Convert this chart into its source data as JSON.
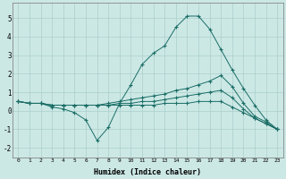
{
  "xlabel": "Humidex (Indice chaleur)",
  "xlim": [
    -0.5,
    23.5
  ],
  "ylim": [
    -2.5,
    5.8
  ],
  "xticks": [
    0,
    1,
    2,
    3,
    4,
    5,
    6,
    7,
    8,
    9,
    10,
    11,
    12,
    13,
    14,
    15,
    16,
    17,
    18,
    19,
    20,
    21,
    22,
    23
  ],
  "yticks": [
    -2,
    -1,
    0,
    1,
    2,
    3,
    4,
    5
  ],
  "bg_color": "#cce8e5",
  "line_color": "#1a6e66",
  "grid_color": "#aacfcc",
  "line1_x": [
    0,
    1,
    2,
    3,
    4,
    5,
    6,
    7,
    8,
    9,
    10,
    11,
    12,
    13,
    14,
    15,
    16,
    17,
    18,
    19,
    20,
    21,
    22,
    23
  ],
  "line1_y": [
    0.5,
    0.4,
    0.4,
    0.2,
    0.1,
    -0.1,
    -0.5,
    -1.6,
    -0.9,
    0.4,
    1.4,
    2.5,
    3.1,
    3.5,
    4.5,
    5.1,
    5.1,
    4.4,
    3.3,
    2.2,
    1.2,
    0.3,
    -0.5,
    -1.0
  ],
  "line2_x": [
    0,
    1,
    2,
    3,
    4,
    5,
    6,
    7,
    8,
    9,
    10,
    11,
    12,
    13,
    14,
    15,
    16,
    17,
    18,
    19,
    20,
    21,
    22,
    23
  ],
  "line2_y": [
    0.5,
    0.4,
    0.4,
    0.3,
    0.3,
    0.3,
    0.3,
    0.3,
    0.4,
    0.5,
    0.6,
    0.7,
    0.8,
    0.9,
    1.1,
    1.2,
    1.4,
    1.6,
    1.9,
    1.3,
    0.4,
    -0.3,
    -0.6,
    -1.0
  ],
  "line3_x": [
    0,
    1,
    2,
    3,
    4,
    5,
    6,
    7,
    8,
    9,
    10,
    11,
    12,
    13,
    14,
    15,
    16,
    17,
    18,
    19,
    20,
    21,
    22,
    23
  ],
  "line3_y": [
    0.5,
    0.4,
    0.4,
    0.3,
    0.3,
    0.3,
    0.3,
    0.3,
    0.3,
    0.4,
    0.4,
    0.5,
    0.5,
    0.6,
    0.7,
    0.8,
    0.9,
    1.0,
    1.1,
    0.7,
    0.1,
    -0.4,
    -0.7,
    -1.0
  ],
  "line4_x": [
    0,
    1,
    2,
    3,
    4,
    5,
    6,
    7,
    8,
    9,
    10,
    11,
    12,
    13,
    14,
    15,
    16,
    17,
    18,
    19,
    20,
    21,
    22,
    23
  ],
  "line4_y": [
    0.5,
    0.4,
    0.4,
    0.3,
    0.3,
    0.3,
    0.3,
    0.3,
    0.3,
    0.3,
    0.3,
    0.3,
    0.3,
    0.4,
    0.4,
    0.4,
    0.5,
    0.5,
    0.5,
    0.2,
    -0.1,
    -0.4,
    -0.7,
    -1.0
  ]
}
